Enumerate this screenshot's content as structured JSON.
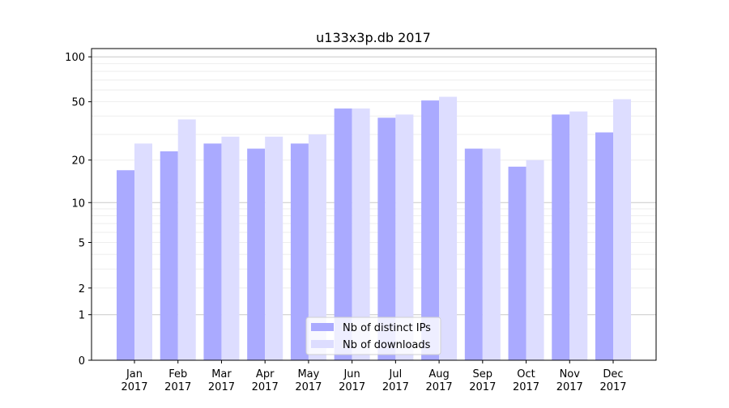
{
  "chart_data": {
    "type": "bar",
    "title": "u133x3p.db 2017",
    "xlabel": "",
    "ylabel": "",
    "yscale": "log10(y+1)",
    "ylim": [
      0,
      120
    ],
    "yticks": [
      0,
      1,
      2,
      5,
      10,
      20,
      50,
      100
    ],
    "categories": [
      "Jan\n2017",
      "Feb\n2017",
      "Mar\n2017",
      "Apr\n2017",
      "May\n2017",
      "Jun\n2017",
      "Jul\n2017",
      "Aug\n2017",
      "Sep\n2017",
      "Oct\n2017",
      "Nov\n2017",
      "Dec\n2017"
    ],
    "series": [
      {
        "name": "Nb of distinct IPs",
        "color": "#aaaaff",
        "values": [
          17,
          23,
          26,
          24,
          26,
          45,
          39,
          51,
          24,
          18,
          41,
          31
        ]
      },
      {
        "name": "Nb of downloads",
        "color": "#ddddff",
        "values": [
          26,
          38,
          29,
          29,
          30,
          45,
          41,
          54,
          24,
          20,
          43,
          52
        ]
      }
    ],
    "grid": true,
    "legend": "bottom-center"
  }
}
